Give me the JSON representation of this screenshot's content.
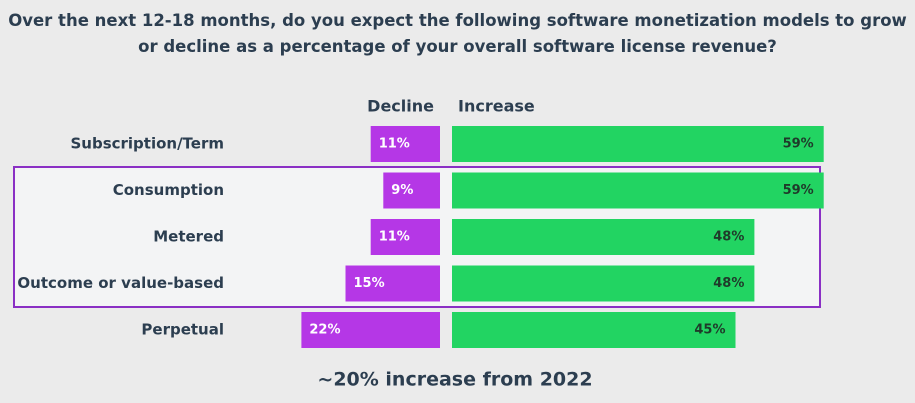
{
  "chart_data": {
    "type": "diverging_bar",
    "title": "Over the next 12-18 months, do you expect the following software monetization models to grow or decline as a percentage of your overall software license revenue?",
    "categories": [
      "Subscription/Term",
      "Consumption",
      "Metered",
      "Outcome or value-based",
      "Perpetual"
    ],
    "series": [
      {
        "name": "Decline",
        "color": "#b537e6",
        "values": [
          11,
          9,
          11,
          15,
          22
        ],
        "value_labels": [
          "11%",
          "9%",
          "11%",
          "15%",
          "22%"
        ]
      },
      {
        "name": "Increase",
        "color": "#22d462",
        "values": [
          59,
          59,
          48,
          48,
          45
        ],
        "value_labels": [
          "59%",
          "59%",
          "48%",
          "48%",
          "45%"
        ]
      }
    ],
    "annotation": "~20% increase from 2022"
  }
}
